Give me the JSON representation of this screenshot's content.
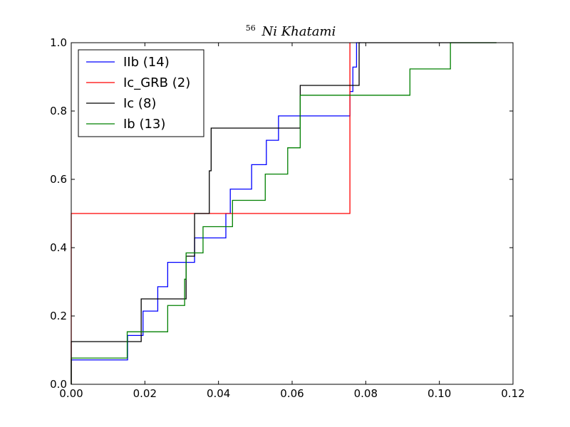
{
  "chart_data": {
    "type": "line",
    "step": true,
    "title_superscript": "56",
    "title_main": "Ni Khatami",
    "xlabel": "",
    "ylabel": "",
    "xlim": [
      0.0,
      0.12
    ],
    "ylim": [
      0.0,
      1.0
    ],
    "x_ticks": [
      0.0,
      0.02,
      0.04,
      0.06,
      0.08,
      0.1,
      0.12
    ],
    "x_tick_labels": [
      "0.00",
      "0.02",
      "0.04",
      "0.06",
      "0.08",
      "0.10",
      "0.12"
    ],
    "y_ticks": [
      0.0,
      0.2,
      0.4,
      0.6,
      0.8,
      1.0
    ],
    "y_tick_labels": [
      "0.0",
      "0.2",
      "0.4",
      "0.6",
      "0.8",
      "1.0"
    ],
    "grid": false,
    "legend_position": "top-left",
    "series": [
      {
        "name": "IIb (14)",
        "color": "#0000ff",
        "x": [
          0.0,
          0.0153,
          0.0195,
          0.0235,
          0.0262,
          0.0335,
          0.0342,
          0.042,
          0.0432,
          0.049,
          0.053,
          0.0563,
          0.0757,
          0.0765,
          0.0775,
          0.0785
        ],
        "y": [
          0.0714,
          0.1429,
          0.2143,
          0.2857,
          0.3571,
          0.4286,
          0.4286,
          0.5,
          0.5714,
          0.6429,
          0.7143,
          0.7857,
          0.8571,
          0.9286,
          1.0,
          1.0
        ]
      },
      {
        "name": "Ic_GRB (2)",
        "color": "#ff0000",
        "x": [
          0.0,
          0.0757,
          0.0757
        ],
        "y": [
          0.5,
          1.0,
          1.0
        ]
      },
      {
        "name": "Ic (8)",
        "color": "#000000",
        "x": [
          0.0,
          0.019,
          0.0312,
          0.0335,
          0.0375,
          0.038,
          0.0622,
          0.0782,
          0.1155
        ],
        "y": [
          0.125,
          0.25,
          0.375,
          0.5,
          0.625,
          0.75,
          0.875,
          1.0,
          1.0
        ]
      },
      {
        "name": "Ib (13)",
        "color": "#008000",
        "x": [
          0.0,
          0.0152,
          0.0262,
          0.0308,
          0.0312,
          0.0345,
          0.0358,
          0.0438,
          0.0527,
          0.0588,
          0.0622,
          0.092,
          0.103,
          0.1155
        ],
        "y": [
          0.0769,
          0.1538,
          0.2308,
          0.3077,
          0.3846,
          0.3846,
          0.4615,
          0.5385,
          0.6154,
          0.6923,
          0.8462,
          0.9231,
          1.0,
          1.0
        ]
      }
    ]
  }
}
